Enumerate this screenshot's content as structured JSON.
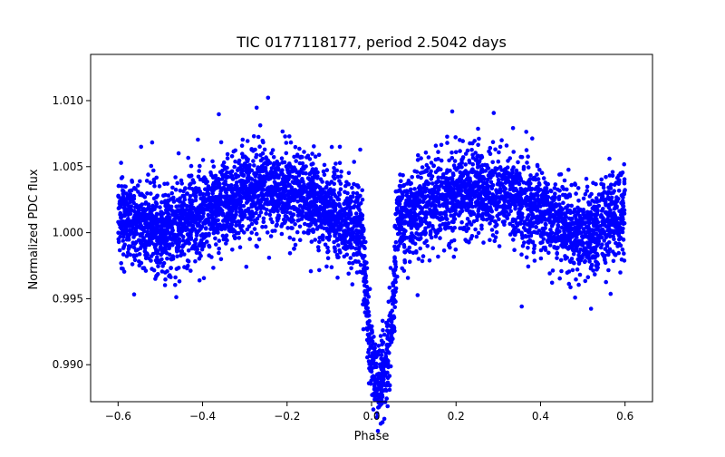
{
  "chart_data": {
    "type": "scatter",
    "title": "TIC 0177118177, period 2.5042 days",
    "xlabel": "Phase",
    "ylabel": "Normalized PDC flux",
    "xlim": [
      -0.665,
      0.665
    ],
    "ylim": [
      0.9872,
      1.0135
    ],
    "x_ticks": [
      -0.6,
      -0.4,
      -0.2,
      0.0,
      0.2,
      0.4,
      0.6
    ],
    "x_tick_labels": [
      "−0.6",
      "−0.4",
      "−0.2",
      "0.0",
      "0.2",
      "0.4",
      "0.6"
    ],
    "y_ticks": [
      0.99,
      0.995,
      1.0,
      1.005,
      1.01
    ],
    "y_tick_labels": [
      "0.990",
      "0.995",
      "1.000",
      "1.005",
      "1.010"
    ],
    "grid": false,
    "legend": "none",
    "marker_color": "#0000ff",
    "series": [
      {
        "name": "PDC flux",
        "description": "phase-folded light curve: out-of-transit baseline ~1.000 with scatter ~±0.004, quasi-sinusoidal modulation peaking near phase ±0.25, primary transit centered at phase ~0.02 reaching ~0.989",
        "x_range": [
          -0.6,
          0.6
        ],
        "baseline": 1.0,
        "scatter_halfwidth": 0.004,
        "transit_center": 0.02,
        "transit_min": 0.9885,
        "transit_halfwidth": 0.04
      }
    ]
  }
}
